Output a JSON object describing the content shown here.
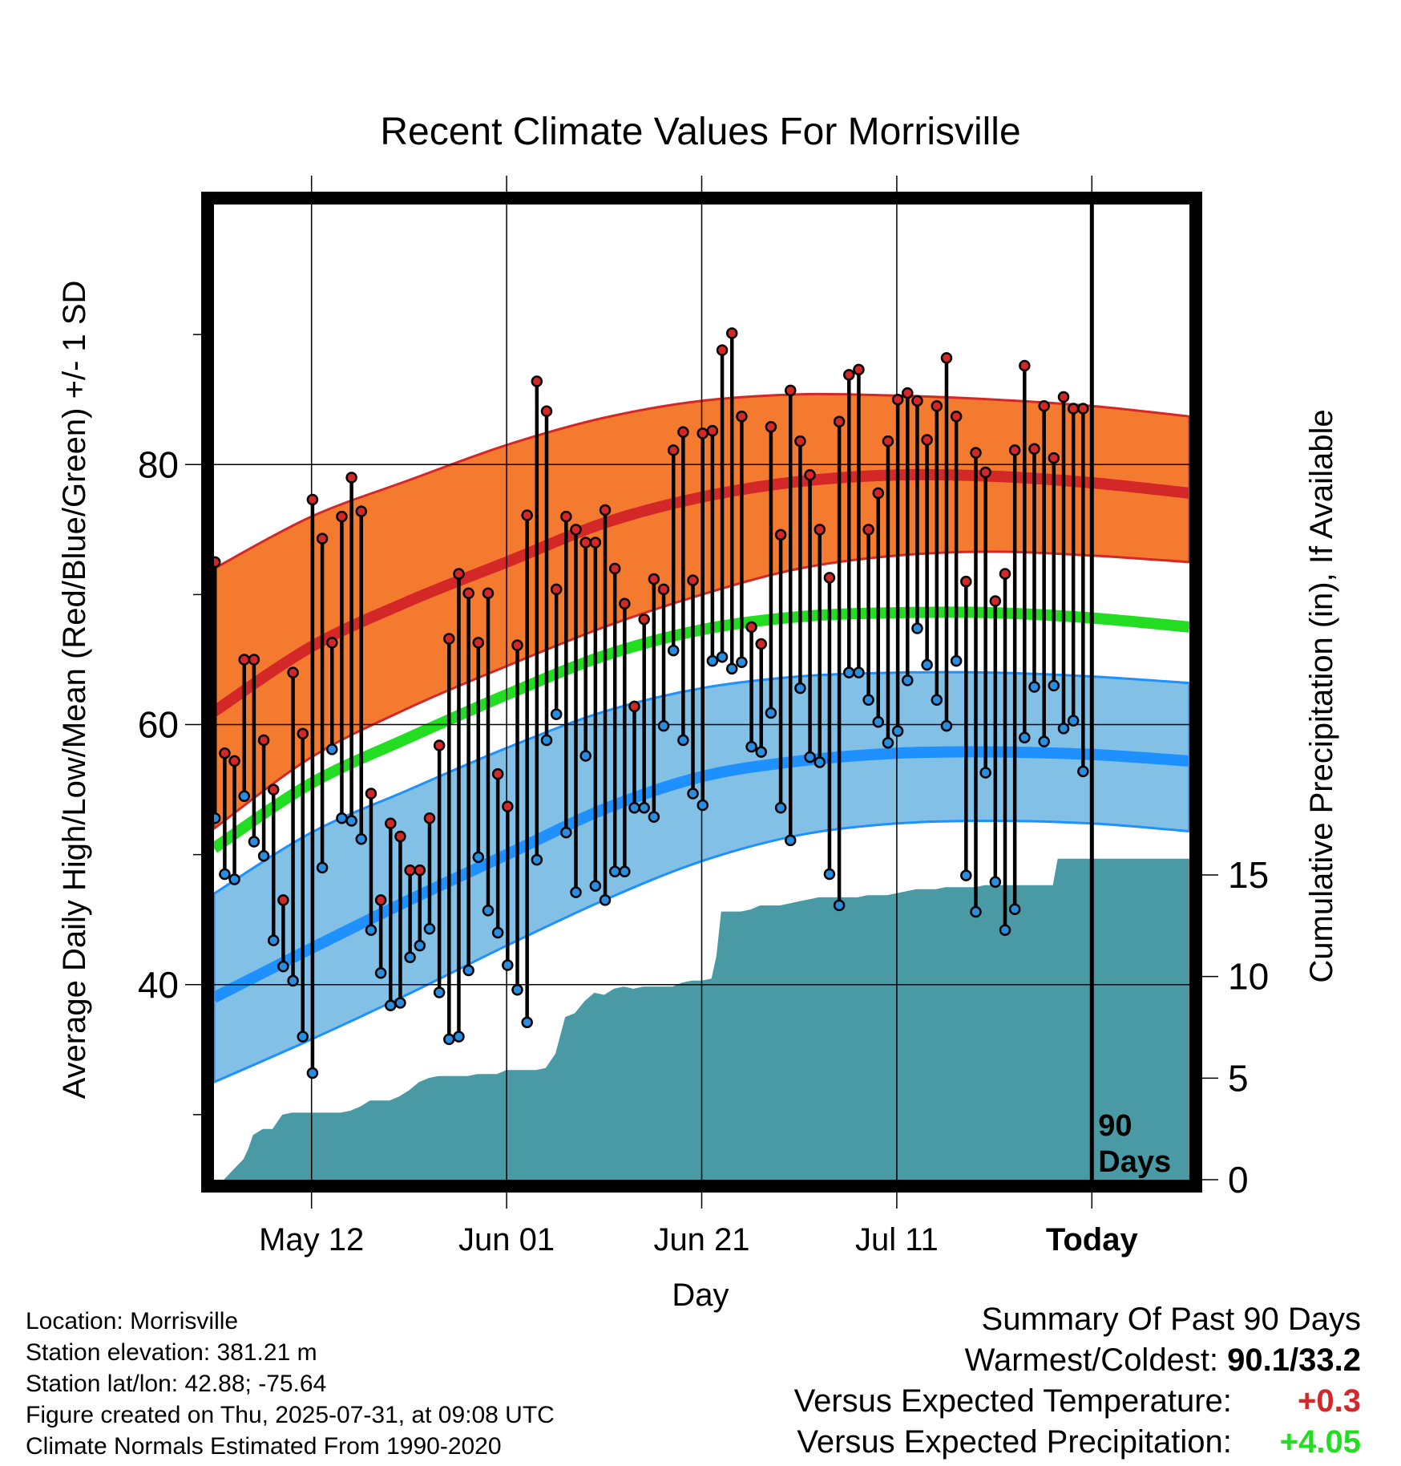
{
  "chart_data": {
    "type": "line",
    "title": "Recent Climate Values For Morrisville",
    "xlabel": "Day",
    "ylabel": "Average Daily High/Low/Mean (Red/Blue/Green) +/- 1 SD",
    "y2label": "Cumulative Precipitation (in), If Available",
    "xticks": [
      "May 12",
      "Jun 01",
      "Jun 21",
      "Jul 11",
      "Today"
    ],
    "yticks": [
      "40",
      "60",
      "80"
    ],
    "y2ticks": [
      "0",
      "5",
      "10",
      "15"
    ],
    "ylim": [
      25,
      100
    ],
    "y2lim": [
      0,
      48
    ],
    "x_range_days": [
      0,
      100
    ],
    "today_day": 90,
    "today_label": "90 Days",
    "grid": true,
    "colors": {
      "high_band": "#f47a30",
      "high_line": "#d42828",
      "mean_line": "#22dd22",
      "low_band": "#82c0e6",
      "low_line": "#1e90ff",
      "precip": "#4a9aa5",
      "high_point": "#d42828",
      "low_point": "#2a8ee0",
      "frame": "#000000"
    },
    "normals": {
      "day": [
        0,
        10,
        20,
        30,
        40,
        50,
        60,
        70,
        80,
        90,
        100
      ],
      "high": [
        61,
        66,
        69.5,
        72.5,
        75.5,
        77.5,
        78.7,
        79.2,
        79.1,
        78.6,
        77.8
      ],
      "high_sd_upper": [
        72,
        76,
        78.8,
        81.5,
        83.6,
        84.9,
        85.4,
        85.3,
        85.0,
        84.5,
        83.7
      ],
      "high_sd_lower": [
        52,
        57.5,
        61.3,
        64.5,
        67.5,
        70,
        72,
        73,
        73.3,
        73,
        72.5
      ],
      "mean": [
        50.5,
        55.5,
        59,
        62.3,
        65.3,
        67.3,
        68.3,
        68.6,
        68.6,
        68.2,
        67.5
      ],
      "low": [
        39,
        42.8,
        46.5,
        50,
        53.5,
        56,
        57.2,
        57.8,
        57.9,
        57.7,
        57.2
      ],
      "low_sd_upper": [
        47,
        51.7,
        55,
        58.2,
        61,
        62.8,
        63.7,
        64,
        64,
        63.7,
        63.2
      ],
      "low_sd_lower": [
        32.5,
        35.8,
        39.3,
        43,
        46.5,
        49.5,
        51.5,
        52.4,
        52.6,
        52.4,
        51.8
      ]
    },
    "daily": {
      "day": [
        0,
        1,
        2,
        3,
        4,
        5,
        6,
        7,
        8,
        9,
        10,
        11,
        12,
        13,
        14,
        15,
        16,
        17,
        18,
        19,
        20,
        21,
        22,
        23,
        24,
        25,
        26,
        27,
        28,
        29,
        30,
        31,
        32,
        33,
        34,
        35,
        36,
        37,
        38,
        39,
        40,
        41,
        42,
        43,
        44,
        45,
        46,
        47,
        48,
        49,
        50,
        51,
        52,
        53,
        54,
        55,
        56,
        57,
        58,
        59,
        60,
        61,
        62,
        63,
        64,
        65,
        66,
        67,
        68,
        69,
        70,
        71,
        72,
        73,
        74,
        75,
        76,
        77,
        78,
        79,
        80,
        81,
        82,
        83,
        84,
        85,
        86,
        87,
        88,
        89
      ],
      "high": [
        72.5,
        57.8,
        57.2,
        65,
        65,
        58.8,
        55,
        46.5,
        64,
        59.3,
        77.3,
        74.3,
        66.3,
        76,
        79,
        76.4,
        54.7,
        46.5,
        52.4,
        51.4,
        48.8,
        48.8,
        52.8,
        58.4,
        66.6,
        71.6,
        70.1,
        66.3,
        70.1,
        56.2,
        53.7,
        66.1,
        76.1,
        86.4,
        84.1,
        70.4,
        76,
        75,
        74,
        74,
        76.5,
        72,
        69.3,
        61.4,
        68.1,
        71.2,
        70.4,
        81.1,
        82.5,
        71.1,
        82.4,
        82.6,
        88.8,
        90.1,
        83.7,
        67.5,
        66.2,
        82.9,
        74.6,
        85.7,
        81.8,
        79.2,
        75,
        71.3,
        83.3,
        86.9,
        87.3,
        75,
        77.8,
        81.8,
        85,
        85.5,
        84.9,
        81.9,
        84.5,
        88.2,
        83.7,
        71,
        80.9,
        79.4,
        69.5,
        71.6,
        81.1,
        87.6,
        81.2,
        84.5,
        80.5,
        85.2,
        84.3,
        84.3
      ],
      "low": [
        52.8,
        48.5,
        48.1,
        54.5,
        51,
        49.9,
        43.4,
        41.4,
        40.3,
        36,
        33.2,
        49,
        58.1,
        52.8,
        52.6,
        51.2,
        44.2,
        40.9,
        38.4,
        38.6,
        42.1,
        43,
        44.3,
        39.4,
        35.8,
        36,
        41.1,
        49.8,
        45.7,
        44,
        41.5,
        39.6,
        37.1,
        49.6,
        58.8,
        60.8,
        51.7,
        47.1,
        57.6,
        47.6,
        46.5,
        48.7,
        48.7,
        53.6,
        53.6,
        52.9,
        59.9,
        65.7,
        58.8,
        54.7,
        53.8,
        64.9,
        65.2,
        64.3,
        64.8,
        58.3,
        57.9,
        60.9,
        53.6,
        51.1,
        62.8,
        57.5,
        57.1,
        48.5,
        46.1,
        64,
        64,
        61.9,
        60.2,
        58.6,
        59.5,
        63.4,
        67.4,
        64.6,
        61.9,
        59.9,
        64.9,
        48.4,
        45.6,
        56.3,
        47.9,
        44.2,
        45.8,
        59,
        62.9,
        58.7,
        63,
        59.7,
        60.3,
        56.4
      ]
    },
    "precip": {
      "day": [
        1,
        2,
        3,
        3.5,
        4,
        5,
        6,
        7,
        8,
        10,
        12,
        13,
        14,
        15,
        16,
        17,
        18,
        19,
        20,
        21,
        22,
        23,
        24,
        25,
        26,
        27,
        28,
        29,
        30,
        31,
        32,
        33,
        34,
        35,
        36,
        37,
        38,
        39,
        40,
        41,
        42,
        43,
        44,
        45,
        46,
        47,
        48,
        49,
        50,
        51,
        51.5,
        52,
        53,
        54,
        55,
        56,
        57,
        58,
        59,
        60,
        61,
        62,
        63,
        64,
        65,
        66,
        67,
        68,
        69,
        70,
        71,
        72,
        73,
        74,
        75,
        76,
        77,
        78,
        79,
        80,
        81,
        82,
        83,
        84,
        85,
        86,
        86.5,
        87,
        88,
        89,
        90
      ],
      "value": [
        0,
        0.5,
        1,
        1.5,
        2.2,
        2.5,
        2.5,
        3.2,
        3.3,
        3.3,
        3.3,
        3.3,
        3.4,
        3.6,
        3.9,
        3.9,
        3.9,
        4.1,
        4.4,
        4.8,
        5,
        5.1,
        5.1,
        5.1,
        5.1,
        5.2,
        5.2,
        5.2,
        5.4,
        5.4,
        5.4,
        5.4,
        5.5,
        6.2,
        8,
        8.2,
        8.8,
        9.2,
        9.1,
        9.4,
        9.5,
        9.4,
        9.5,
        9.5,
        9.5,
        9.5,
        9.7,
        9.8,
        9.8,
        9.9,
        11,
        13.2,
        13.2,
        13.2,
        13.3,
        13.5,
        13.5,
        13.5,
        13.6,
        13.7,
        13.8,
        13.9,
        13.9,
        13.9,
        13.9,
        13.9,
        14,
        14,
        14,
        14.1,
        14.2,
        14.3,
        14.3,
        14.3,
        14.4,
        14.4,
        14.4,
        14.4,
        14.5,
        14.5,
        14.5,
        14.5,
        14.5,
        14.5,
        14.5,
        14.5,
        15.8,
        15.8,
        15.8,
        15.8,
        15.8
      ]
    }
  },
  "location": {
    "location_line": "Location: Morrisville",
    "elevation_line": "Station elevation: 381.21 m",
    "latlon_line": "Station lat/lon: 42.88; -75.64",
    "created_line": "Figure created on Thu, 2025-07-31, at 09:08 UTC",
    "normals_line": "Climate Normals Estimated From 1990-2020"
  },
  "summary": {
    "title": "Summary Of Past 90 Days",
    "warm_cold_label": "Warmest/Coldest:",
    "warm_cold_value": "90.1/33.2",
    "temp_label": "Versus Expected Temperature:",
    "temp_value": "+0.3",
    "temp_color": "#d42828",
    "precip_label": "Versus Expected Precipitation:",
    "precip_value": "+4.05",
    "precip_color": "#22dd22"
  }
}
